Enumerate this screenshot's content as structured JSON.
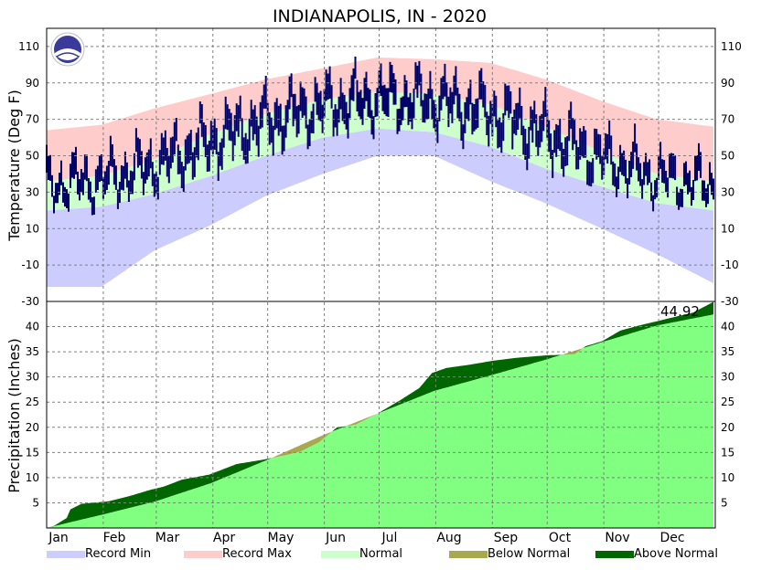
{
  "chart_data": {
    "type": "area",
    "title": "INDIANAPOLIS, IN - 2020",
    "months": [
      "Jan",
      "Feb",
      "Mar",
      "Apr",
      "May",
      "Jun",
      "Jul",
      "Aug",
      "Sep",
      "Oct",
      "Nov",
      "Dec"
    ],
    "legend": [
      {
        "label": "Record Min",
        "color": "#ccccff"
      },
      {
        "label": "Record Max",
        "color": "#ffcccc"
      },
      {
        "label": "Normal",
        "color": "#ccffcc"
      },
      {
        "label": "Below Normal",
        "color": "#a8a84f"
      },
      {
        "label": "Above Normal",
        "color": "#006600"
      }
    ],
    "colors": {
      "record_min": "#ccccff",
      "record_max": "#ffcccc",
      "normal": "#ccffcc",
      "observed": "#000066",
      "normal_precip": "#80ff80",
      "above_normal": "#006600",
      "below_normal": "#a8a84f",
      "grid": "#808080"
    },
    "temperature": {
      "ylabel": "Temperature (Deg F)",
      "ylim": [
        -30,
        120
      ],
      "ticks": [
        "110",
        "90",
        "70",
        "50",
        "30",
        "10",
        "-10",
        "-30"
      ],
      "tick_values": [
        110,
        90,
        70,
        50,
        30,
        10,
        -10,
        -30
      ],
      "record_max": [
        [
          1,
          64
        ],
        [
          31,
          67
        ],
        [
          60,
          76
        ],
        [
          91,
          84
        ],
        [
          121,
          92
        ],
        [
          152,
          98
        ],
        [
          182,
          104
        ],
        [
          213,
          103
        ],
        [
          244,
          101
        ],
        [
          274,
          92
        ],
        [
          305,
          80
        ],
        [
          335,
          70
        ],
        [
          366,
          66
        ]
      ],
      "record_min": [
        [
          1,
          -22
        ],
        [
          31,
          -22
        ],
        [
          60,
          -2
        ],
        [
          91,
          12
        ],
        [
          121,
          28
        ],
        [
          152,
          40
        ],
        [
          182,
          50
        ],
        [
          213,
          50
        ],
        [
          244,
          36
        ],
        [
          274,
          24
        ],
        [
          305,
          10
        ],
        [
          335,
          -4
        ],
        [
          366,
          -20
        ]
      ],
      "normal_high": [
        [
          1,
          36
        ],
        [
          31,
          39
        ],
        [
          60,
          48
        ],
        [
          91,
          62
        ],
        [
          121,
          73
        ],
        [
          152,
          81
        ],
        [
          182,
          85
        ],
        [
          213,
          84
        ],
        [
          244,
          78
        ],
        [
          274,
          66
        ],
        [
          305,
          52
        ],
        [
          335,
          40
        ],
        [
          366,
          36
        ]
      ],
      "normal_low": [
        [
          1,
          20
        ],
        [
          31,
          22
        ],
        [
          60,
          29
        ],
        [
          91,
          39
        ],
        [
          121,
          50
        ],
        [
          152,
          60
        ],
        [
          182,
          65
        ],
        [
          213,
          63
        ],
        [
          244,
          55
        ],
        [
          274,
          43
        ],
        [
          305,
          33
        ],
        [
          335,
          24
        ],
        [
          366,
          20
        ]
      ]
    },
    "precipitation": {
      "ylabel": "Precipitation (Inches)",
      "ylim": [
        0,
        45
      ],
      "ticks": [
        "40",
        "35",
        "30",
        "25",
        "20",
        "15",
        "10",
        "5"
      ],
      "tick_values": [
        40,
        35,
        30,
        25,
        20,
        15,
        10,
        5
      ],
      "total_label": "44.92",
      "normal_cumulative": [
        [
          1,
          0
        ],
        [
          31,
          2.6
        ],
        [
          60,
          5.2
        ],
        [
          91,
          8.9
        ],
        [
          121,
          13.4
        ],
        [
          152,
          18.4
        ],
        [
          182,
          22.7
        ],
        [
          213,
          27.2
        ],
        [
          244,
          30.3
        ],
        [
          274,
          33.4
        ],
        [
          305,
          36.9
        ],
        [
          335,
          40.2
        ],
        [
          366,
          42.4
        ]
      ],
      "observed_cumulative": [
        [
          1,
          0
        ],
        [
          5,
          0.4
        ],
        [
          12,
          2.0
        ],
        [
          14,
          3.7
        ],
        [
          20,
          4.8
        ],
        [
          35,
          5.3
        ],
        [
          45,
          6.2
        ],
        [
          58,
          7.6
        ],
        [
          65,
          8.2
        ],
        [
          75,
          9.6
        ],
        [
          90,
          10.6
        ],
        [
          105,
          12.7
        ],
        [
          120,
          13.6
        ],
        [
          131,
          14.4
        ],
        [
          140,
          15.2
        ],
        [
          150,
          17.0
        ],
        [
          160,
          20.0
        ],
        [
          170,
          20.5
        ],
        [
          182,
          22.7
        ],
        [
          195,
          25.5
        ],
        [
          205,
          27.8
        ],
        [
          212,
          30.8
        ],
        [
          220,
          31.8
        ],
        [
          232,
          32.4
        ],
        [
          245,
          33.2
        ],
        [
          258,
          33.8
        ],
        [
          275,
          34.3
        ],
        [
          290,
          34.5
        ],
        [
          296,
          36.1
        ],
        [
          305,
          37.1
        ],
        [
          315,
          39.2
        ],
        [
          325,
          40.2
        ],
        [
          340,
          41.5
        ],
        [
          355,
          42.8
        ],
        [
          366,
          44.92
        ]
      ]
    }
  }
}
